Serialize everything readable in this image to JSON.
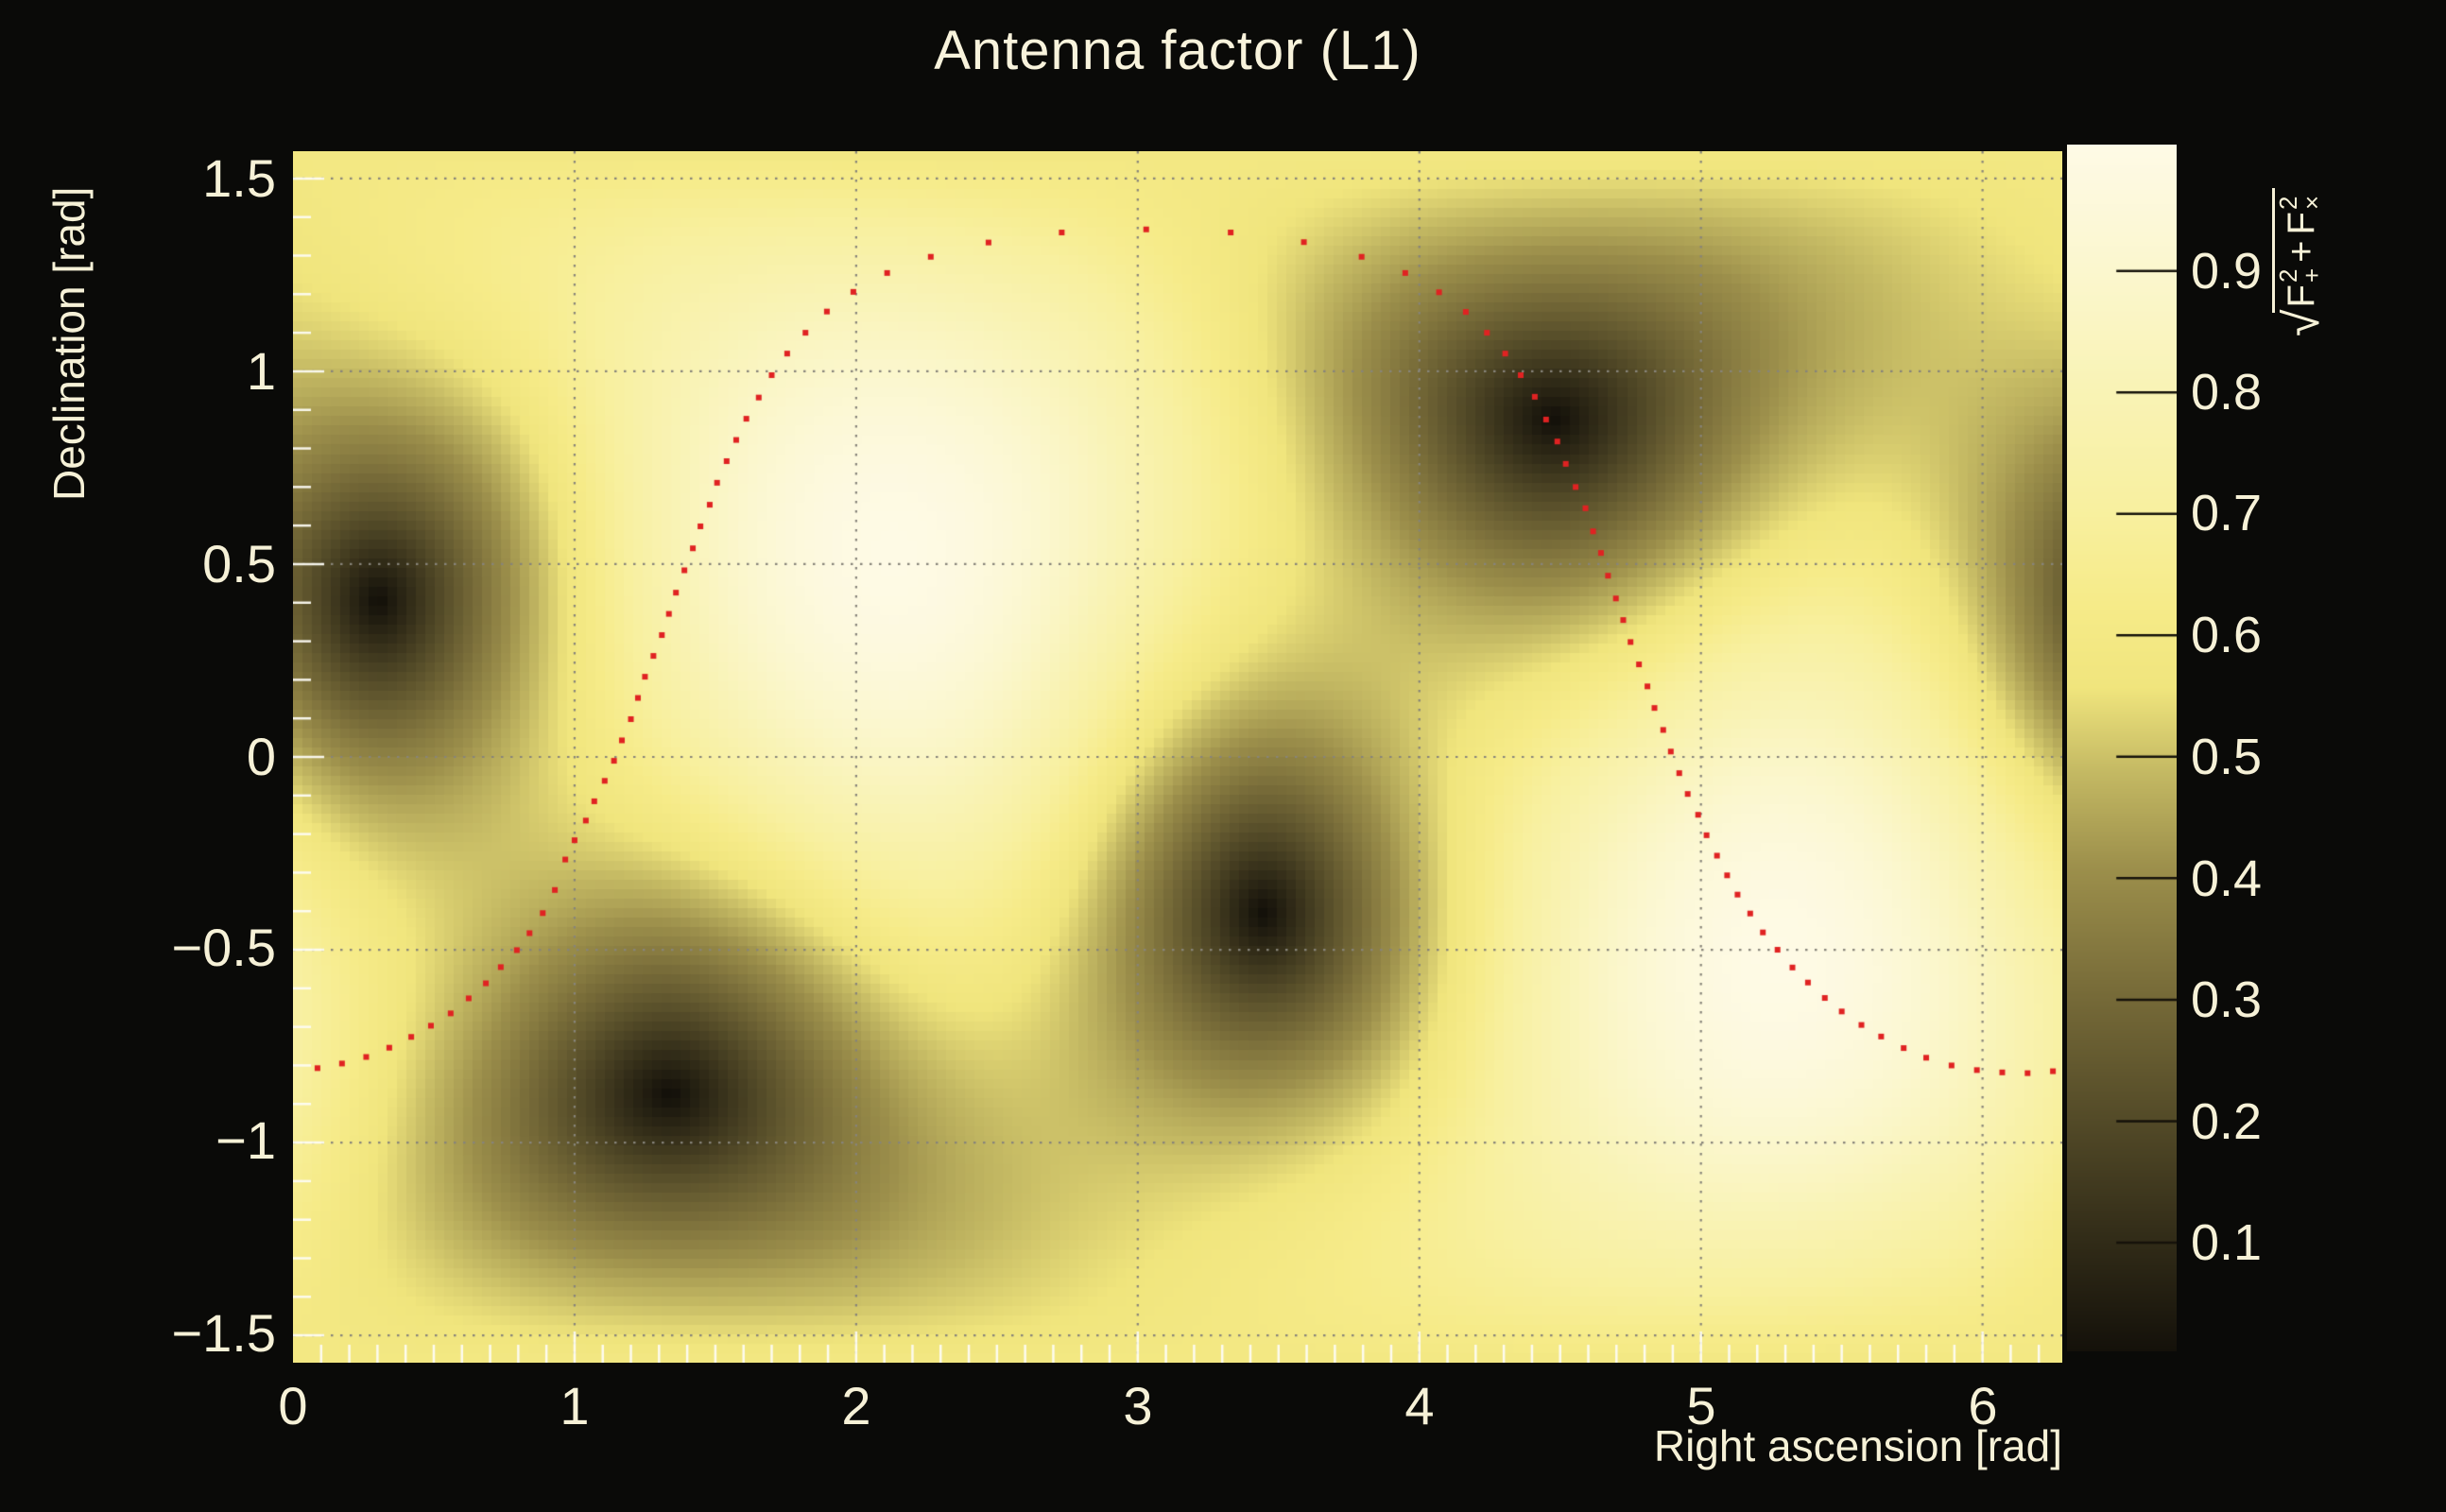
{
  "title": "Antenna factor (L1)",
  "axes": {
    "x": {
      "label": "Right ascension [rad]",
      "tick_labels": [
        "0",
        "1",
        "2",
        "3",
        "4",
        "5",
        "6"
      ],
      "tick_values": [
        0,
        1,
        2,
        3,
        4,
        5,
        6
      ],
      "range": [
        0,
        6.2832
      ],
      "minor_step": 0.1
    },
    "y": {
      "label": "Declination [rad]",
      "tick_labels": [
        "1.5",
        "1",
        "0.5",
        "0",
        "−0.5",
        "−1",
        "−1.5"
      ],
      "tick_values": [
        1.5,
        1,
        0.5,
        0,
        -0.5,
        -1,
        -1.5
      ],
      "range": [
        -1.5708,
        1.5708
      ],
      "minor_step": 0.1
    }
  },
  "colorbar": {
    "tick_labels": [
      "0.9",
      "0.8",
      "0.7",
      "0.6",
      "0.5",
      "0.4",
      "0.3",
      "0.2",
      "0.1"
    ],
    "tick_values": [
      0.9,
      0.8,
      0.7,
      0.6,
      0.5,
      0.4,
      0.3,
      0.2,
      0.1
    ],
    "min": 0.0105,
    "max": 1.004,
    "label": {
      "radical": "√",
      "f1": {
        "base": "F",
        "sup": "2",
        "sub": "+"
      },
      "plus": "+",
      "f2": {
        "base": "F",
        "sup": "2",
        "sub": "×"
      }
    },
    "palette": [
      [
        0.0,
        "#14110a"
      ],
      [
        0.1,
        "#342e19"
      ],
      [
        0.2,
        "#564d29"
      ],
      [
        0.3,
        "#786c39"
      ],
      [
        0.4,
        "#9c8f4b"
      ],
      [
        0.48,
        "#c4b963"
      ],
      [
        0.55,
        "#f0e57d"
      ],
      [
        0.62,
        "#f6eb89"
      ],
      [
        0.7,
        "#f8f0a0"
      ],
      [
        0.8,
        "#f9f3b6"
      ],
      [
        0.9,
        "#fbf7cf"
      ],
      [
        1.0,
        "#fefae6"
      ]
    ]
  },
  "chart_data": {
    "type": "heatmap",
    "title": "Antenna factor (L1)",
    "xlabel": "Right ascension [rad]",
    "ylabel": "Declination [rad]",
    "zlabel": "sqrt(F+^2 + Fx^2)",
    "x_range": [
      0,
      6.2832
    ],
    "y_range": [
      -1.5708,
      1.5708
    ],
    "z_range": [
      0.0105,
      1.004
    ],
    "grid_bins": [
      187,
      128
    ],
    "grid_on": true,
    "grid_lines": {
      "x": [
        1,
        2,
        3,
        4,
        5,
        6
      ],
      "y": [
        -1.5,
        -1,
        -0.5,
        0,
        0.5,
        1,
        1.5
      ]
    },
    "field": "Combined antenna response |F|=sqrt(F+^2+Fx^2) of an L-shaped interferometer; zero (dark) at the four null sky directions, maximum ~1 (bright) perpendicular to the detector plane",
    "null_directions_rad": [
      [
        0.31,
        0.4
      ],
      [
        1.33,
        -0.87
      ],
      [
        3.45,
        -0.4
      ],
      [
        4.45,
        0.87
      ]
    ],
    "max_directions_rad": [
      [
        2.13,
        0.53
      ],
      [
        5.27,
        -0.53
      ]
    ],
    "trajectory": {
      "style": "red dotted curve",
      "color": "#e02222",
      "points": [
        [
          0.087,
          -0.807
        ],
        [
          0.174,
          -0.795
        ],
        [
          0.26,
          -0.778
        ],
        [
          0.342,
          -0.754
        ],
        [
          0.42,
          -0.726
        ],
        [
          0.49,
          -0.697
        ],
        [
          0.56,
          -0.665
        ],
        [
          0.624,
          -0.626
        ],
        [
          0.685,
          -0.587
        ],
        [
          0.738,
          -0.545
        ],
        [
          0.795,
          -0.501
        ],
        [
          0.84,
          -0.457
        ],
        [
          0.887,
          -0.405
        ],
        [
          0.93,
          -0.345
        ],
        [
          0.967,
          -0.266
        ],
        [
          1.0,
          -0.216
        ],
        [
          1.04,
          -0.165
        ],
        [
          1.07,
          -0.115
        ],
        [
          1.107,
          -0.062
        ],
        [
          1.14,
          -0.01
        ],
        [
          1.168,
          0.043
        ],
        [
          1.2,
          0.098
        ],
        [
          1.225,
          0.153
        ],
        [
          1.25,
          0.208
        ],
        [
          1.28,
          0.262
        ],
        [
          1.31,
          0.316
        ],
        [
          1.335,
          0.371
        ],
        [
          1.36,
          0.426
        ],
        [
          1.39,
          0.484
        ],
        [
          1.42,
          0.541
        ],
        [
          1.447,
          0.598
        ],
        [
          1.48,
          0.654
        ],
        [
          1.506,
          0.711
        ],
        [
          1.54,
          0.767
        ],
        [
          1.574,
          0.822
        ],
        [
          1.61,
          0.877
        ],
        [
          1.654,
          0.932
        ],
        [
          1.7,
          0.99
        ],
        [
          1.755,
          1.046
        ],
        [
          1.82,
          1.1
        ],
        [
          1.896,
          1.155
        ],
        [
          1.99,
          1.206
        ],
        [
          2.11,
          1.255
        ],
        [
          2.265,
          1.297
        ],
        [
          2.47,
          1.334
        ],
        [
          2.73,
          1.36
        ],
        [
          3.03,
          1.368
        ],
        [
          3.33,
          1.36
        ],
        [
          3.59,
          1.335
        ],
        [
          3.795,
          1.297
        ],
        [
          3.95,
          1.255
        ],
        [
          4.07,
          1.205
        ],
        [
          4.165,
          1.154
        ],
        [
          4.24,
          1.1
        ],
        [
          4.305,
          1.046
        ],
        [
          4.36,
          0.99
        ],
        [
          4.41,
          0.934
        ],
        [
          4.45,
          0.875
        ],
        [
          4.49,
          0.818
        ],
        [
          4.52,
          0.76
        ],
        [
          4.555,
          0.7
        ],
        [
          4.59,
          0.645
        ],
        [
          4.617,
          0.585
        ],
        [
          4.645,
          0.529
        ],
        [
          4.67,
          0.47
        ],
        [
          4.698,
          0.411
        ],
        [
          4.724,
          0.355
        ],
        [
          4.75,
          0.298
        ],
        [
          4.78,
          0.24
        ],
        [
          4.81,
          0.183
        ],
        [
          4.835,
          0.127
        ],
        [
          4.866,
          0.07
        ],
        [
          4.893,
          0.014
        ],
        [
          4.923,
          -0.042
        ],
        [
          4.953,
          -0.096
        ],
        [
          4.99,
          -0.15
        ],
        [
          5.02,
          -0.203
        ],
        [
          5.057,
          -0.256
        ],
        [
          5.093,
          -0.307
        ],
        [
          5.13,
          -0.357
        ],
        [
          5.175,
          -0.406
        ],
        [
          5.22,
          -0.455
        ],
        [
          5.272,
          -0.5
        ],
        [
          5.325,
          -0.546
        ],
        [
          5.38,
          -0.585
        ],
        [
          5.44,
          -0.625
        ],
        [
          5.5,
          -0.66
        ],
        [
          5.57,
          -0.695
        ],
        [
          5.64,
          -0.725
        ],
        [
          5.72,
          -0.755
        ],
        [
          5.8,
          -0.78
        ],
        [
          5.89,
          -0.8
        ],
        [
          5.98,
          -0.812
        ],
        [
          6.07,
          -0.818
        ],
        [
          6.16,
          -0.82
        ],
        [
          6.25,
          -0.815
        ]
      ]
    }
  }
}
